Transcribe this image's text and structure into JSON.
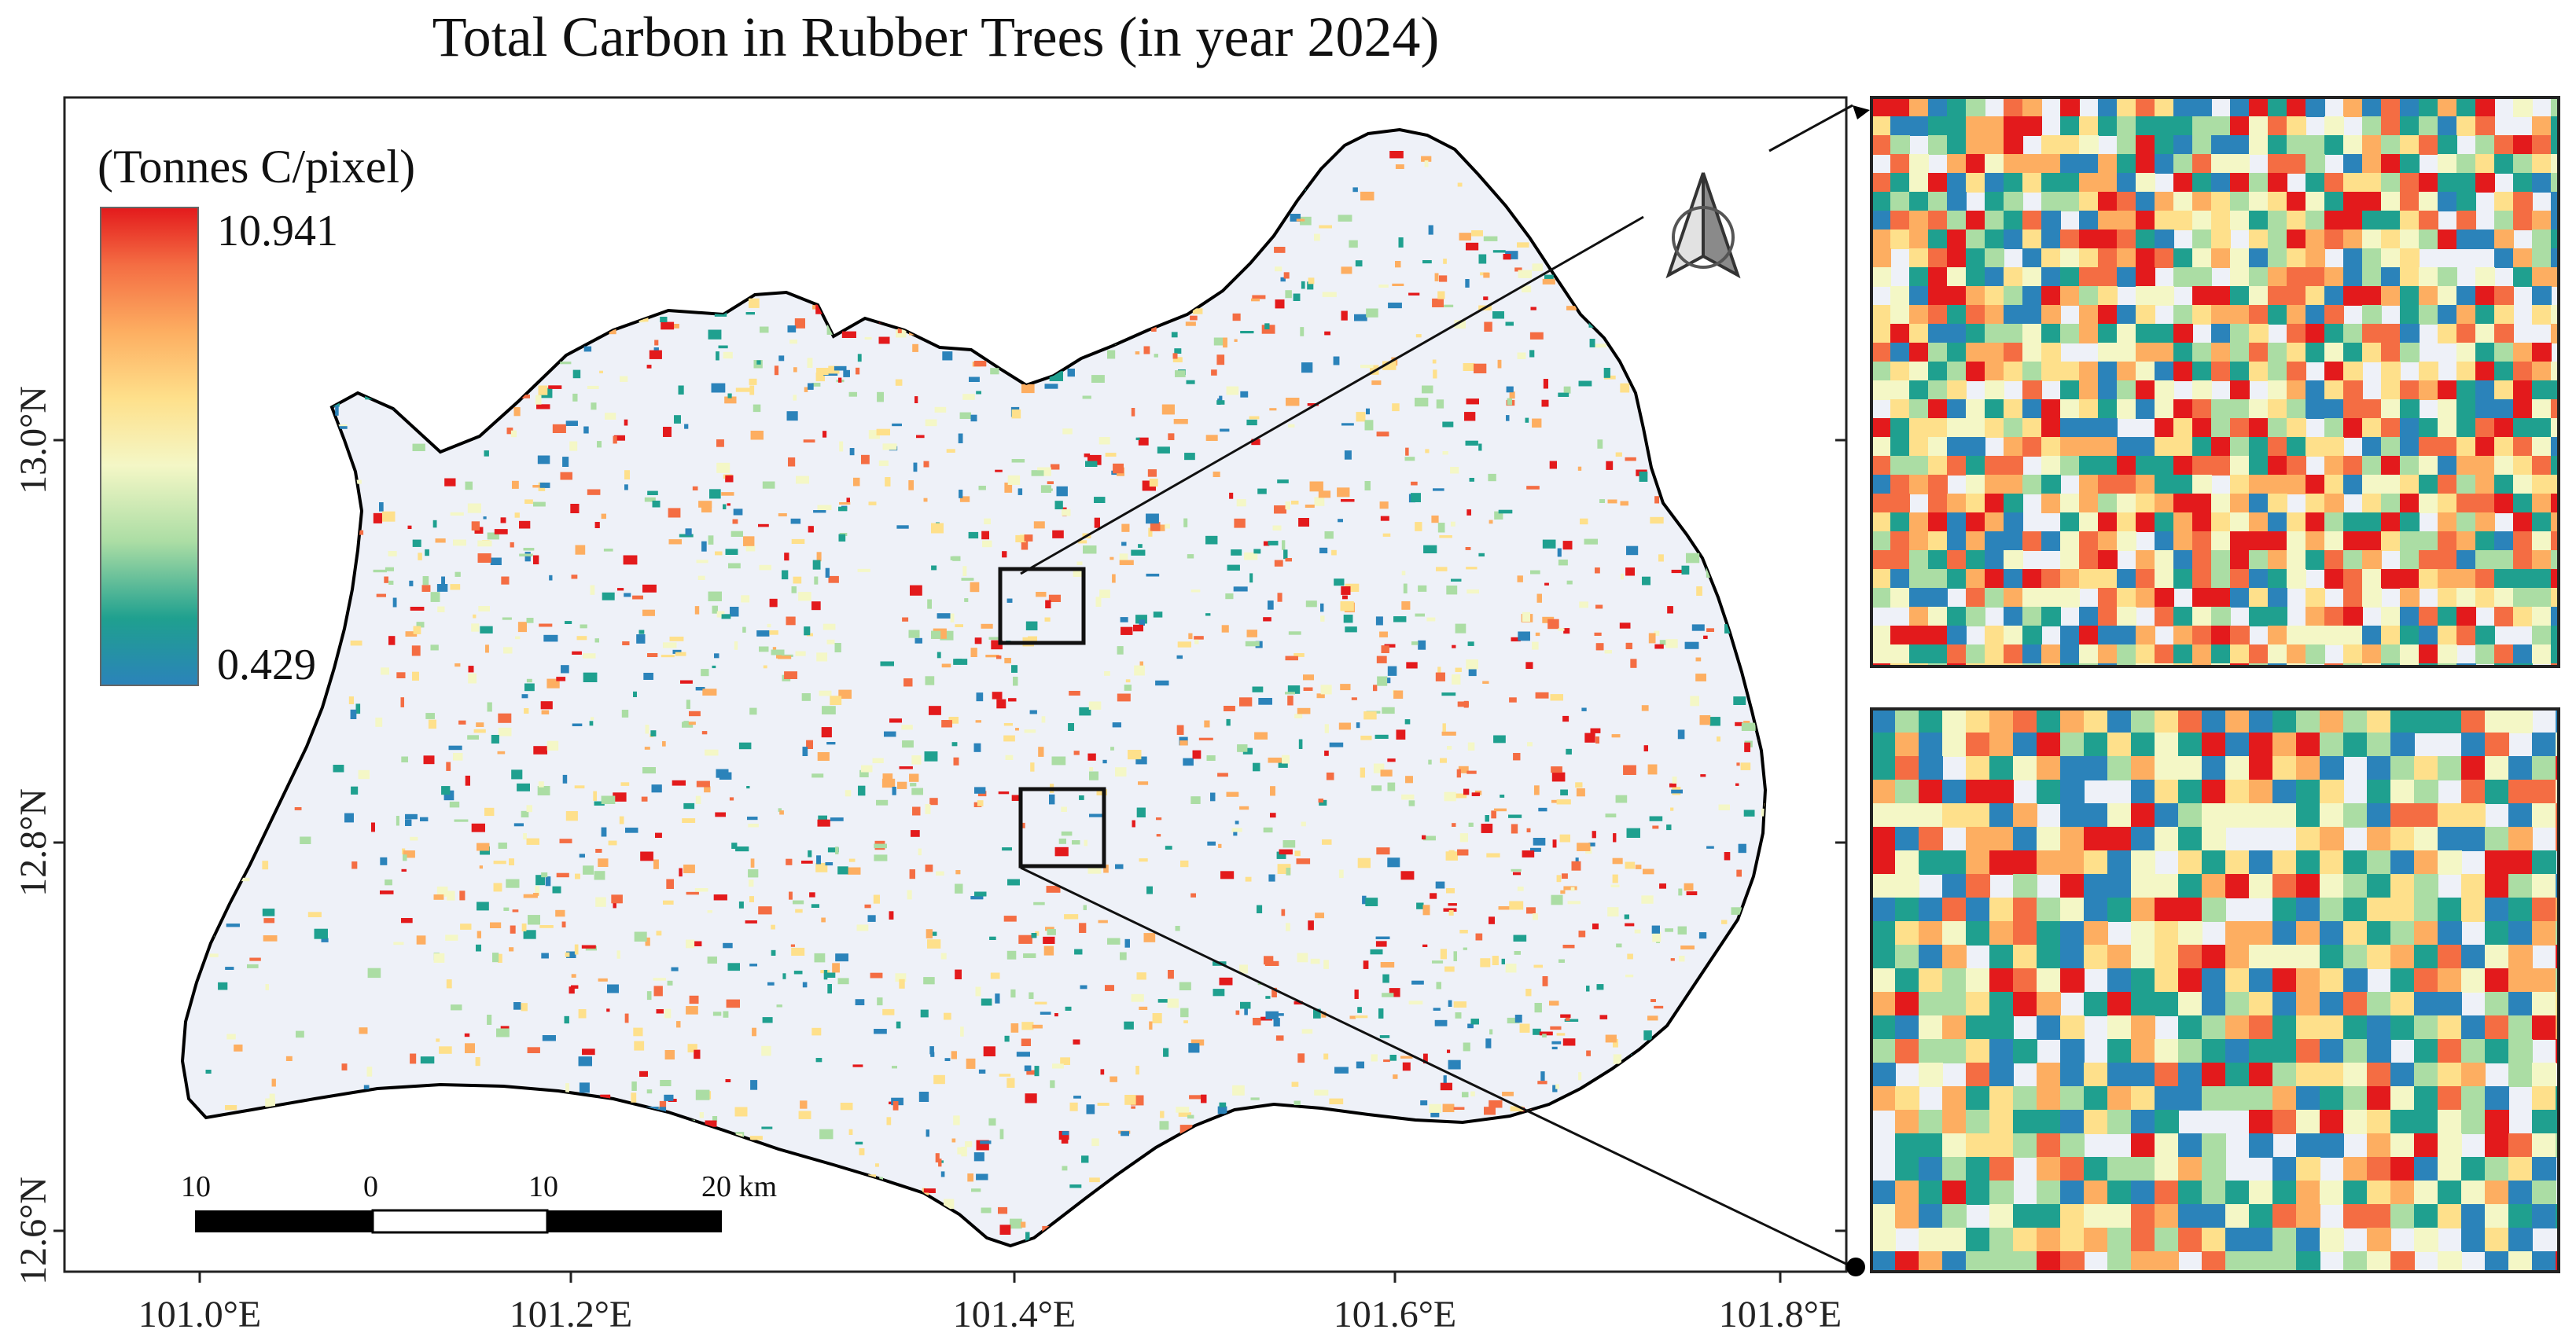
{
  "title": "Total Carbon in Rubber Trees (in year 2024)",
  "legend": {
    "title": "(Tonnes C/pixel)",
    "max_label": "10.941",
    "min_label": "0.429",
    "colors": [
      "#2b83ba",
      "#1fa08f",
      "#abdda4",
      "#f4f7c6",
      "#fee08b",
      "#fdae61",
      "#f46d43",
      "#e31a1c"
    ]
  },
  "axes": {
    "lon_ticks": [
      "101.0°E",
      "101.2°E",
      "101.4°E",
      "101.6°E",
      "101.8°E"
    ],
    "lat_ticks": [
      "13.0°N",
      "12.8°N",
      "12.6°N"
    ]
  },
  "scale_bar": {
    "labels": [
      "10",
      "0",
      "10",
      "20 km"
    ]
  },
  "map": {
    "background_fill": "#eef1f8",
    "outline_color": "#000000",
    "north_arrow": "north-arrow-icon"
  }
}
